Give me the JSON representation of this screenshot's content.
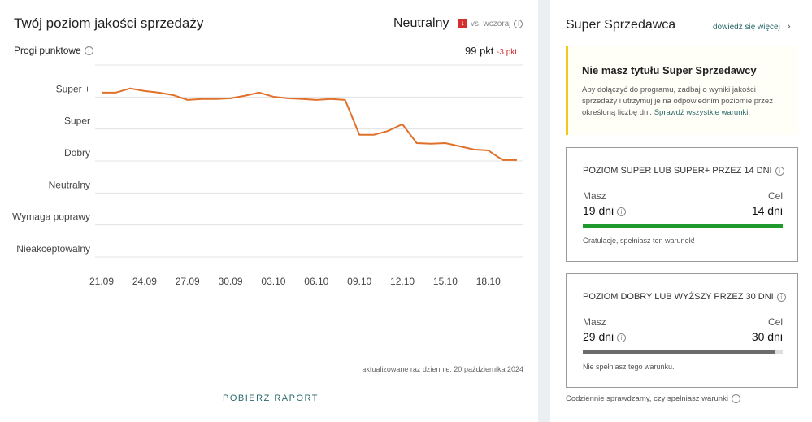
{
  "quality": {
    "title": "Twój poziom jakości sprzedaży",
    "level": "Neutralny",
    "compare": "vs. wczoraj",
    "thresholds_label": "Progi punktowe",
    "points": "99 pkt",
    "points_change": "-3 pkt",
    "updated": "aktualizowane raz dziennie: 20 października 2024",
    "download": "POBIERZ RAPORT"
  },
  "chart_data": {
    "type": "line",
    "color": "#e0702a",
    "categories": [
      "21.09",
      null,
      null,
      "24.09",
      null,
      null,
      "27.09",
      null,
      null,
      "30.09",
      null,
      null,
      "03.10",
      null,
      null,
      "06.10",
      null,
      null,
      "09.10",
      null,
      null,
      "12.10",
      null,
      null,
      "15.10",
      null,
      null,
      "18.10",
      null,
      null
    ],
    "values": [
      5.14,
      5.14,
      5.27,
      5.19,
      5.14,
      5.06,
      4.91,
      4.94,
      4.94,
      4.96,
      5.04,
      5.14,
      5.01,
      4.96,
      4.94,
      4.91,
      4.94,
      4.91,
      3.82,
      3.82,
      3.94,
      4.15,
      3.56,
      3.54,
      3.56,
      3.46,
      3.36,
      3.33,
      3.03,
      3.03
    ],
    "ylim": [
      0,
      6
    ],
    "yticks": [
      {
        "value": 0,
        "label": "Nieakceptowalny"
      },
      {
        "value": 1,
        "label": "Wymaga poprawy"
      },
      {
        "value": 2,
        "label": "Neutralny"
      },
      {
        "value": 3,
        "label": "Dobry"
      },
      {
        "value": 4,
        "label": "Super"
      },
      {
        "value": 5,
        "label": "Super +"
      }
    ],
    "grid": true
  },
  "super_seller": {
    "title": "Super Sprzedawca",
    "learn_more": "dowiedz się więcej",
    "notice": {
      "title": "Nie masz tytułu Super Sprzedawcy",
      "text": "Aby dołączyć do programu, zadbaj o wyniki jakości sprzedaży i utrzymuj je na odpowiednim poziomie przez określoną liczbę dni.",
      "link": "Sprawdź wszystkie warunki."
    },
    "conditions": [
      {
        "title": "POZIOM SUPER LUB SUPER+ PRZEZ 14 DNI",
        "have_label": "Masz",
        "have": "19 dni",
        "goal_label": "Cel",
        "goal": "14 dni",
        "status": "Gratulacje, spełniasz ten warunek!"
      },
      {
        "title": "POZIOM DOBRY LUB WYŻSZY PRZEZ 30 DNI",
        "have_label": "Masz",
        "have": "29 dni",
        "goal_label": "Cel",
        "goal": "30 dni",
        "status": "Nie spełniasz tego warunku."
      }
    ],
    "footer": "Codziennie sprawdzamy, czy spełniasz warunki"
  }
}
